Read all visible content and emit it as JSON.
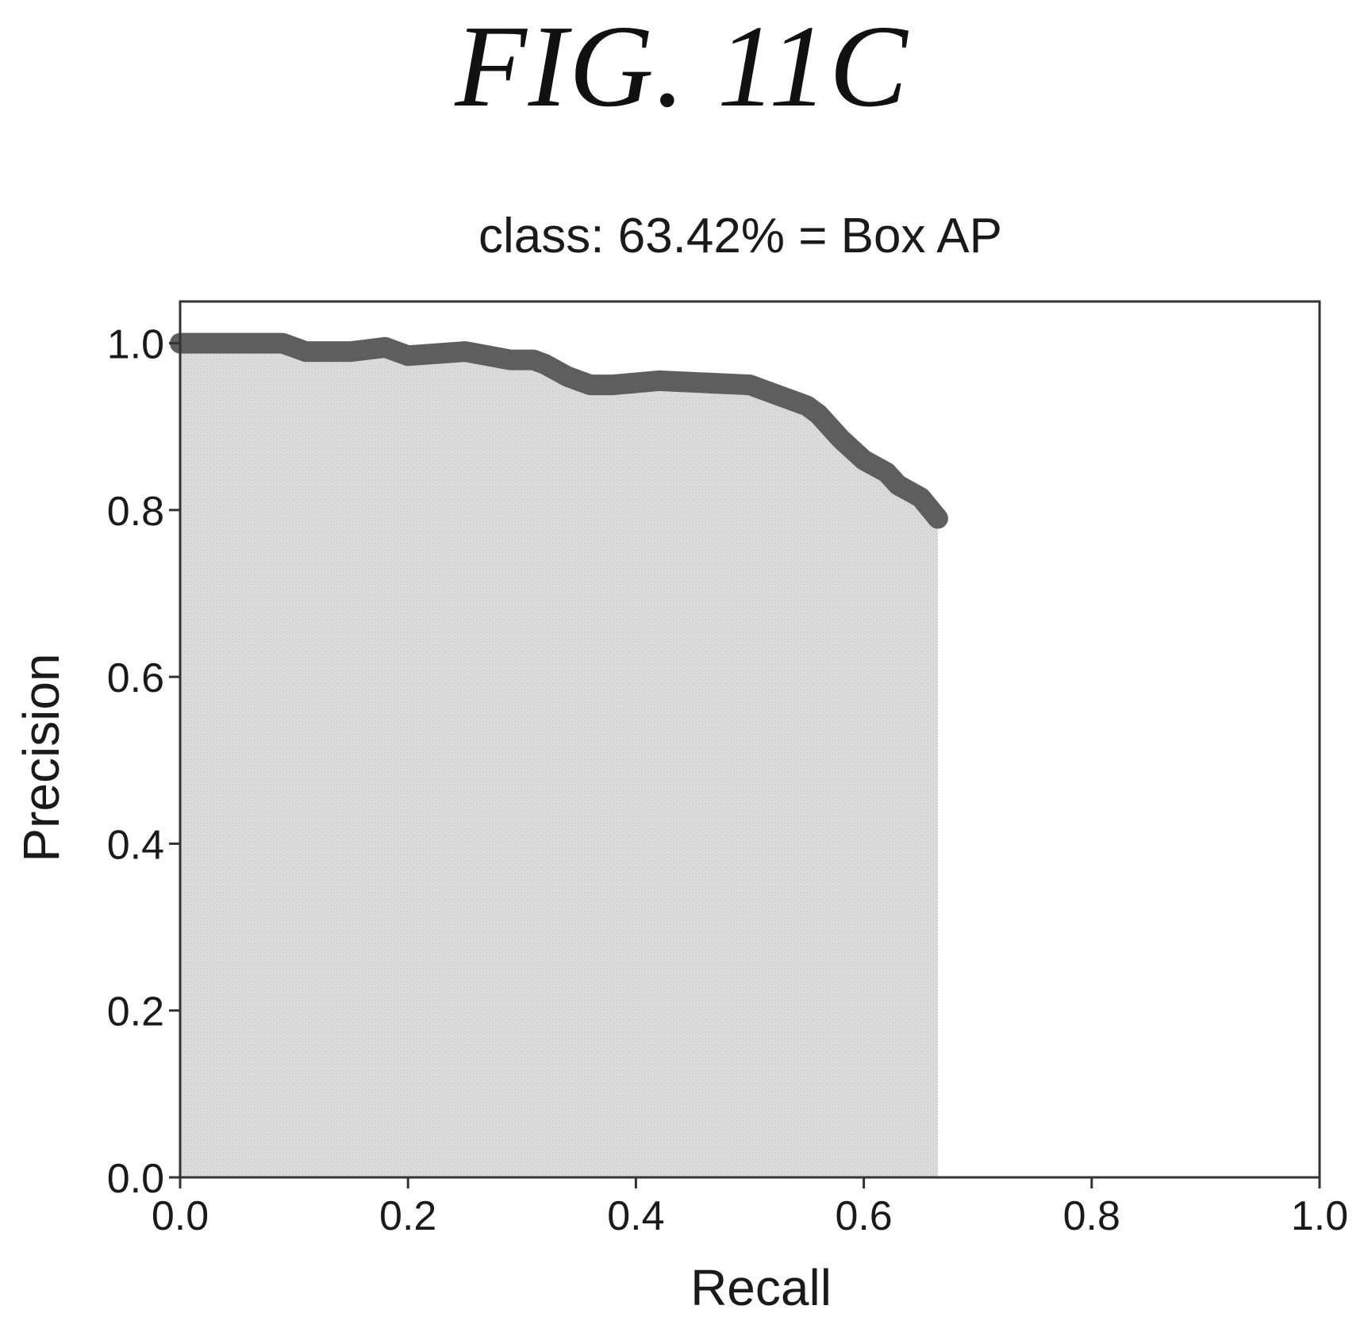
{
  "figure": {
    "label": "FIG. 11C"
  },
  "chart_data": {
    "type": "area",
    "title": "class: 63.42% = Box AP",
    "xlabel": "Recall",
    "ylabel": "Precision",
    "xlim": [
      0.0,
      1.0
    ],
    "ylim": [
      0.0,
      1.05
    ],
    "xticks": [
      "0.0",
      "0.2",
      "0.4",
      "0.6",
      "0.8",
      "1.0"
    ],
    "yticks": [
      "0.0",
      "0.2",
      "0.4",
      "0.6",
      "0.8",
      "1.0"
    ],
    "grid": false,
    "series": [
      {
        "x": [
          0.0,
          0.03,
          0.06,
          0.09,
          0.1,
          0.11,
          0.15,
          0.18,
          0.19,
          0.2,
          0.25,
          0.27,
          0.29,
          0.31,
          0.32,
          0.34,
          0.36,
          0.38,
          0.42,
          0.5,
          0.51,
          0.53,
          0.55,
          0.56,
          0.58,
          0.6,
          0.62,
          0.63,
          0.65,
          0.665
        ],
        "y": [
          1.0,
          1.0,
          1.0,
          1.0,
          0.995,
          0.99,
          0.99,
          0.995,
          0.99,
          0.985,
          0.99,
          0.985,
          0.98,
          0.98,
          0.975,
          0.96,
          0.95,
          0.95,
          0.955,
          0.95,
          0.945,
          0.935,
          0.925,
          0.915,
          0.885,
          0.86,
          0.845,
          0.83,
          0.815,
          0.79
        ]
      }
    ],
    "colors": {
      "fill": "#d4d4d4",
      "line": "#5e5e5e",
      "axes": "#333333"
    }
  }
}
